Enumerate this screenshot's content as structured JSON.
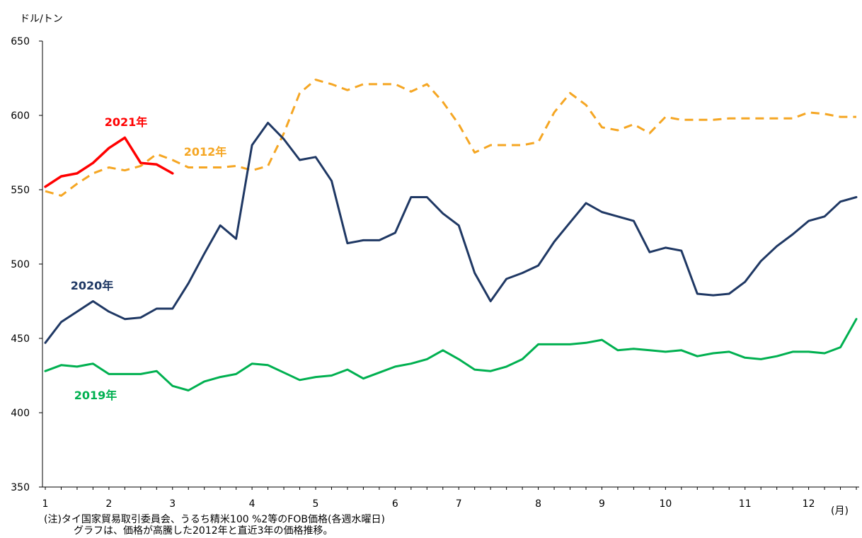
{
  "chart_data": {
    "type": "line",
    "ylabel": "ドル/トン",
    "xlabel": "(月)",
    "ylim": [
      350,
      650
    ],
    "yticks": [
      350,
      400,
      450,
      500,
      550,
      600,
      650
    ],
    "xticks": [
      "1",
      "2",
      "3",
      "4",
      "5",
      "6",
      "7",
      "8",
      "9",
      "10",
      "11",
      "12"
    ],
    "grid": false,
    "points_per_series": 52,
    "series": [
      {
        "name": "2021年",
        "color": "#ff0000",
        "dashed": false,
        "values": [
          552,
          559,
          561,
          568,
          578,
          585,
          568,
          567,
          561
        ]
      },
      {
        "name": "2012年",
        "color": "#f5a623",
        "dashed": true,
        "values": [
          549,
          546,
          554,
          561,
          565,
          563,
          566,
          574,
          570,
          565,
          565,
          565,
          566,
          563,
          566,
          588,
          615,
          624,
          621,
          617,
          621,
          621,
          621,
          616,
          621,
          609,
          594,
          575,
          580,
          580,
          580,
          582,
          602,
          615,
          607,
          592,
          590,
          594,
          588,
          599,
          597,
          597,
          597,
          598,
          598,
          598,
          598,
          598,
          602,
          601,
          599,
          599
        ]
      },
      {
        "name": "2020年",
        "color": "#1f3864",
        "dashed": false,
        "values": [
          447,
          461,
          468,
          475,
          468,
          463,
          464,
          470,
          470,
          487,
          507,
          526,
          517,
          580,
          595,
          584,
          570,
          572,
          556,
          514,
          516,
          516,
          521,
          545,
          545,
          534,
          526,
          494,
          475,
          490,
          494,
          499,
          515,
          528,
          541,
          535,
          532,
          529,
          508,
          511,
          509,
          480,
          479,
          480,
          488,
          502,
          512,
          520,
          529,
          532,
          542,
          545
        ]
      },
      {
        "name": "2019年",
        "color": "#00b050",
        "dashed": false,
        "values": [
          428,
          432,
          431,
          433,
          426,
          426,
          426,
          428,
          418,
          415,
          421,
          424,
          426,
          433,
          432,
          427,
          422,
          424,
          425,
          429,
          423,
          427,
          431,
          433,
          436,
          442,
          436,
          429,
          428,
          431,
          436,
          446,
          446,
          446,
          447,
          449,
          442,
          443,
          442,
          441,
          442,
          438,
          440,
          441,
          437,
          436,
          438,
          441,
          441,
          440,
          444,
          463
        ]
      }
    ]
  },
  "labels": {
    "month_unit": "(月)",
    "note_line1": "(注)タイ国家貿易取引委員会、うるち精米100 %2等のFOB価格(各週水曜日)",
    "note_line2": "グラフは、価格が高騰した2012年と直近3年の価格推移。"
  }
}
